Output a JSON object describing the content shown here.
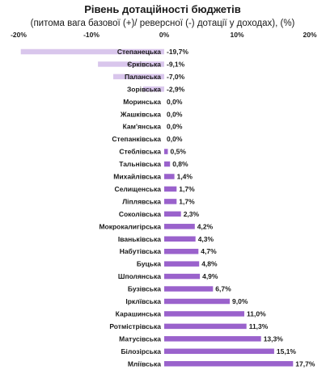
{
  "chart_data": {
    "type": "bar",
    "orientation": "horizontal",
    "title": "Рівень дотаційності бюджетів",
    "subtitle": "(питома вага базової (+)/ реверсної (-) дотації  у доходах), (%)",
    "xlim": [
      -20,
      20
    ],
    "x_ticks": [
      -20,
      -10,
      0,
      10,
      20
    ],
    "x_tick_labels": [
      "-20%",
      "-10%",
      "0%",
      "10%",
      "20%"
    ],
    "axis_position": "top",
    "grid": false,
    "legend": "none",
    "colors": {
      "negative": "#d9c6ec",
      "positive": "#9a62cc"
    },
    "categories": [
      "Степанецька",
      "Єрківська",
      "Паланська",
      "Зорівська",
      "Моринська",
      "Жашківська",
      "Кам'янська",
      "Степанківська",
      "Стеблівська",
      "Тальнівська",
      "Михайлівська",
      "Селищенська",
      "Ліплявська",
      "Соколівська",
      "Мокрокалигірська",
      "Іваньківська",
      "Набутівська",
      "Буцька",
      "Шполянська",
      "Бузівська",
      "Ірклївська",
      "Карашинська",
      "Ротмістрівська",
      "Матусівська",
      "Білозірська",
      "Мліївська"
    ],
    "values": [
      -19.7,
      -9.1,
      -7.0,
      -2.9,
      0.0,
      0.0,
      0.0,
      0.0,
      0.5,
      0.8,
      1.4,
      1.7,
      1.7,
      2.3,
      4.2,
      4.3,
      4.7,
      4.8,
      4.9,
      6.7,
      9.0,
      11.0,
      11.3,
      13.3,
      15.1,
      17.7
    ],
    "value_labels": [
      "-19,7%",
      "-9,1%",
      "-7,0%",
      "-2,9%",
      "0,0%",
      "0,0%",
      "0,0%",
      "0,0%",
      "0,5%",
      "0,8%",
      "1,4%",
      "1,7%",
      "1,7%",
      "2,3%",
      "4,2%",
      "4,3%",
      "4,7%",
      "4,8%",
      "4,9%",
      "6,7%",
      "9,0%",
      "11,0%",
      "11,3%",
      "13,3%",
      "15,1%",
      "17,7%"
    ]
  }
}
